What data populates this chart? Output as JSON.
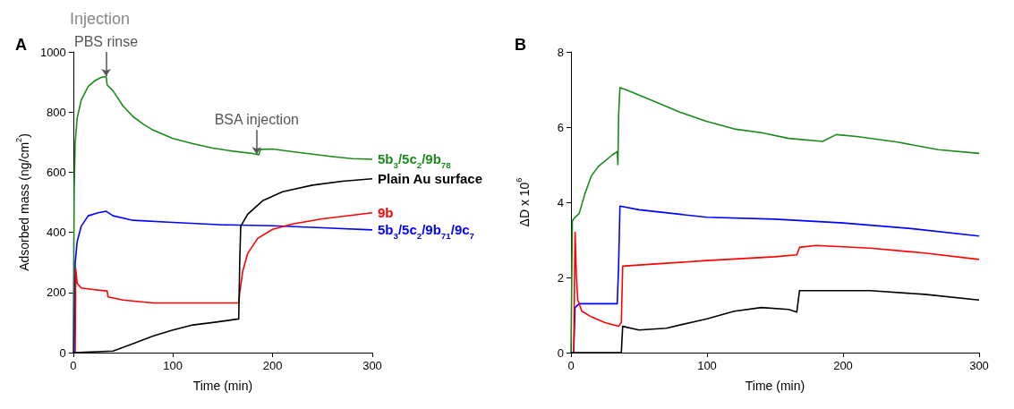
{
  "chart_data": [
    {
      "type": "line",
      "title": "A",
      "xlabel": "Time (min)",
      "ylabel": "Adsorbed mass (ng/cm$^{2}$)",
      "xlim": [
        0,
        300
      ],
      "xticks": [
        0,
        100,
        200,
        300
      ],
      "ylim": [
        0,
        1000
      ],
      "yticks": [
        0,
        200,
        400,
        600,
        800,
        1000
      ],
      "annotations": [
        "Injection",
        {
          "text": "PBS rinse",
          "x": 33,
          "y": 920
        },
        {
          "text": "BSA injection",
          "x": 184,
          "y": 660
        }
      ],
      "series": [
        {
          "name": "5b$_{3}$/5c$_{2}$/9b$_{78}$",
          "color": "#1a8a1a",
          "x": [
            0,
            1,
            2,
            4,
            8,
            15,
            22,
            28,
            33,
            34,
            40,
            50,
            60,
            70,
            80,
            100,
            120,
            140,
            160,
            180,
            186,
            188,
            200,
            220,
            240,
            260,
            280,
            300
          ],
          "values": [
            0,
            550,
            700,
            780,
            840,
            885,
            905,
            915,
            918,
            890,
            870,
            820,
            785,
            760,
            740,
            712,
            695,
            680,
            670,
            662,
            658,
            676,
            677,
            668,
            660,
            652,
            645,
            643
          ]
        },
        {
          "name": "5b$_{3}$/5c$_{2}$/9b$_{71}$/9c$_{7}$",
          "color": "#0000ff",
          "x": [
            0,
            1,
            2,
            4,
            8,
            15,
            25,
            33,
            40,
            60,
            100,
            150,
            200,
            250,
            300
          ],
          "values": [
            0,
            5,
            300,
            370,
            420,
            455,
            465,
            470,
            455,
            440,
            433,
            425,
            422,
            415,
            408
          ]
        },
        {
          "name": "9b",
          "color": "#ff0000",
          "x": [
            2,
            2.5,
            4,
            8,
            20,
            34,
            35,
            50,
            80,
            120,
            166,
            167,
            170,
            175,
            185,
            200,
            220,
            250,
            300
          ],
          "values": [
            0,
            280,
            230,
            215,
            210,
            205,
            185,
            175,
            165,
            165,
            165,
            200,
            270,
            330,
            380,
            410,
            428,
            445,
            465
          ]
        },
        {
          "name": "Plain Au surface",
          "color": "#000000",
          "x": [
            0,
            40,
            60,
            80,
            100,
            120,
            140,
            166,
            167,
            168,
            175,
            190,
            210,
            240,
            270,
            300
          ],
          "values": [
            0,
            5,
            30,
            55,
            75,
            92,
            100,
            112,
            300,
            420,
            460,
            505,
            535,
            557,
            570,
            578
          ]
        }
      ]
    },
    {
      "type": "line",
      "title": "B",
      "xlabel": "Time (min)",
      "ylabel": "ΔD x 10$^{6}$",
      "xlim": [
        0,
        300
      ],
      "xticks": [
        0,
        100,
        200,
        300
      ],
      "ylim": [
        0,
        8
      ],
      "yticks": [
        0,
        2,
        4,
        6,
        8
      ],
      "series": [
        {
          "color": "#1a8a1a",
          "x": [
            0,
            1,
            3,
            6,
            10,
            15,
            20,
            30,
            34,
            34.5,
            35,
            36,
            40,
            60,
            80,
            100,
            120,
            140,
            160,
            185,
            195,
            210,
            240,
            270,
            300
          ],
          "values": [
            0,
            3.5,
            3.6,
            3.7,
            4.2,
            4.7,
            4.95,
            5.25,
            5.35,
            5.0,
            6.3,
            7.05,
            7.0,
            6.7,
            6.4,
            6.15,
            5.95,
            5.85,
            5.7,
            5.62,
            5.8,
            5.75,
            5.6,
            5.4,
            5.3
          ]
        },
        {
          "color": "#0000ff",
          "x": [
            2,
            3,
            6,
            20,
            34,
            35,
            36,
            50,
            100,
            150,
            200,
            250,
            300
          ],
          "values": [
            0,
            1.2,
            1.3,
            1.3,
            1.3,
            2.3,
            3.9,
            3.8,
            3.6,
            3.55,
            3.45,
            3.3,
            3.1
          ]
        },
        {
          "color": "#ff0000",
          "x": [
            2,
            3,
            4,
            5,
            8,
            15,
            25,
            35,
            37,
            38,
            50,
            100,
            150,
            166,
            168,
            180,
            220,
            260,
            300
          ],
          "values": [
            0,
            3.2,
            2,
            1.4,
            1.1,
            0.95,
            0.8,
            0.7,
            0.8,
            2.3,
            2.33,
            2.45,
            2.55,
            2.6,
            2.8,
            2.85,
            2.78,
            2.65,
            2.48
          ]
        },
        {
          "color": "#000000",
          "x": [
            0,
            15,
            37,
            38,
            50,
            70,
            100,
            120,
            140,
            160,
            166,
            168,
            200,
            220,
            260,
            300
          ],
          "values": [
            0,
            0,
            0,
            0.7,
            0.6,
            0.65,
            0.9,
            1.1,
            1.2,
            1.15,
            1.08,
            1.65,
            1.65,
            1.65,
            1.55,
            1.4
          ]
        }
      ]
    }
  ]
}
